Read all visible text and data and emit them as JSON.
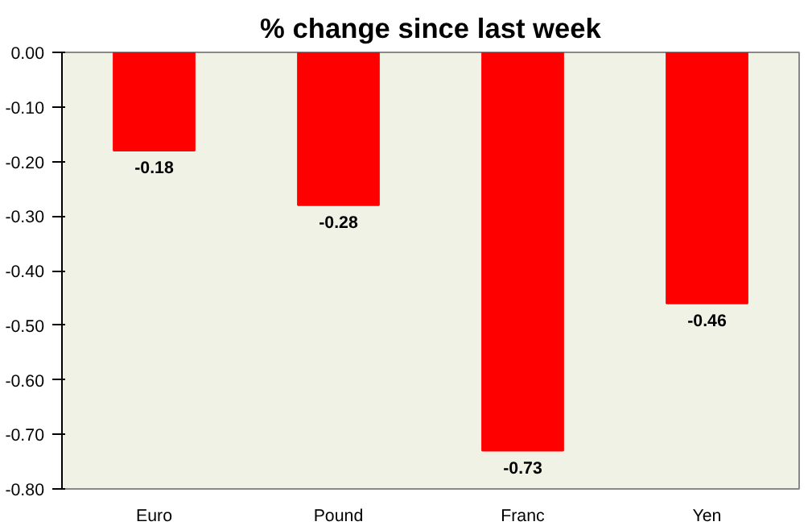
{
  "chart_data": {
    "type": "bar",
    "title": "% change since last week",
    "categories": [
      "Euro",
      "Pound",
      "Franc",
      "Yen"
    ],
    "values": [
      -0.18,
      -0.28,
      -0.73,
      -0.46
    ],
    "color": "#ff0000",
    "data_labels": true,
    "grid": false,
    "ylim": [
      -0.8,
      0
    ],
    "yticks": [
      {
        "value": 0,
        "label": "0.00"
      },
      {
        "value": -0.1,
        "label": "-0.10"
      },
      {
        "value": -0.2,
        "label": "-0.20"
      },
      {
        "value": -0.3,
        "label": "-0.30"
      },
      {
        "value": -0.4,
        "label": "-0.40"
      },
      {
        "value": -0.5,
        "label": "-0.50"
      },
      {
        "value": -0.6,
        "label": "-0.60"
      },
      {
        "value": -0.7,
        "label": "-0.70"
      },
      {
        "value": -0.8,
        "label": "-0.80"
      }
    ]
  }
}
